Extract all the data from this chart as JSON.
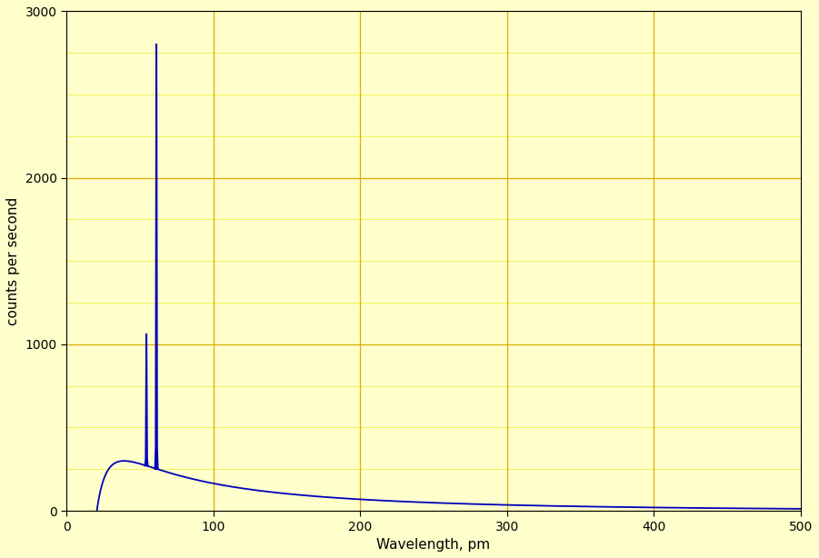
{
  "xlabel": "Wavelength, pm",
  "ylabel": "counts per second",
  "xlim": [
    0,
    500
  ],
  "ylim": [
    0,
    3000
  ],
  "xticks": [
    0,
    100,
    200,
    300,
    400,
    500
  ],
  "yticks": [
    0,
    1000,
    2000,
    3000
  ],
  "y_minor_ticks": [
    250,
    500,
    750,
    1000,
    1250,
    1500,
    1750,
    2000,
    2250,
    2500,
    2750,
    3000
  ],
  "background_color": "#ffffcc",
  "line_color": "#0000bb",
  "grid_major_color": "#ddaa00",
  "grid_minor_color": "#eeee44",
  "line_width": 1.3,
  "k_alpha_wavelength": 61.3,
  "k_alpha_peak": 2800,
  "k_beta_wavelength": 54.5,
  "k_beta_peak": 1060,
  "bremss_start": 20.7,
  "bremss_peak_x": 62,
  "bremss_peak_y": 300,
  "font_size_label": 11,
  "font_size_tick": 10
}
